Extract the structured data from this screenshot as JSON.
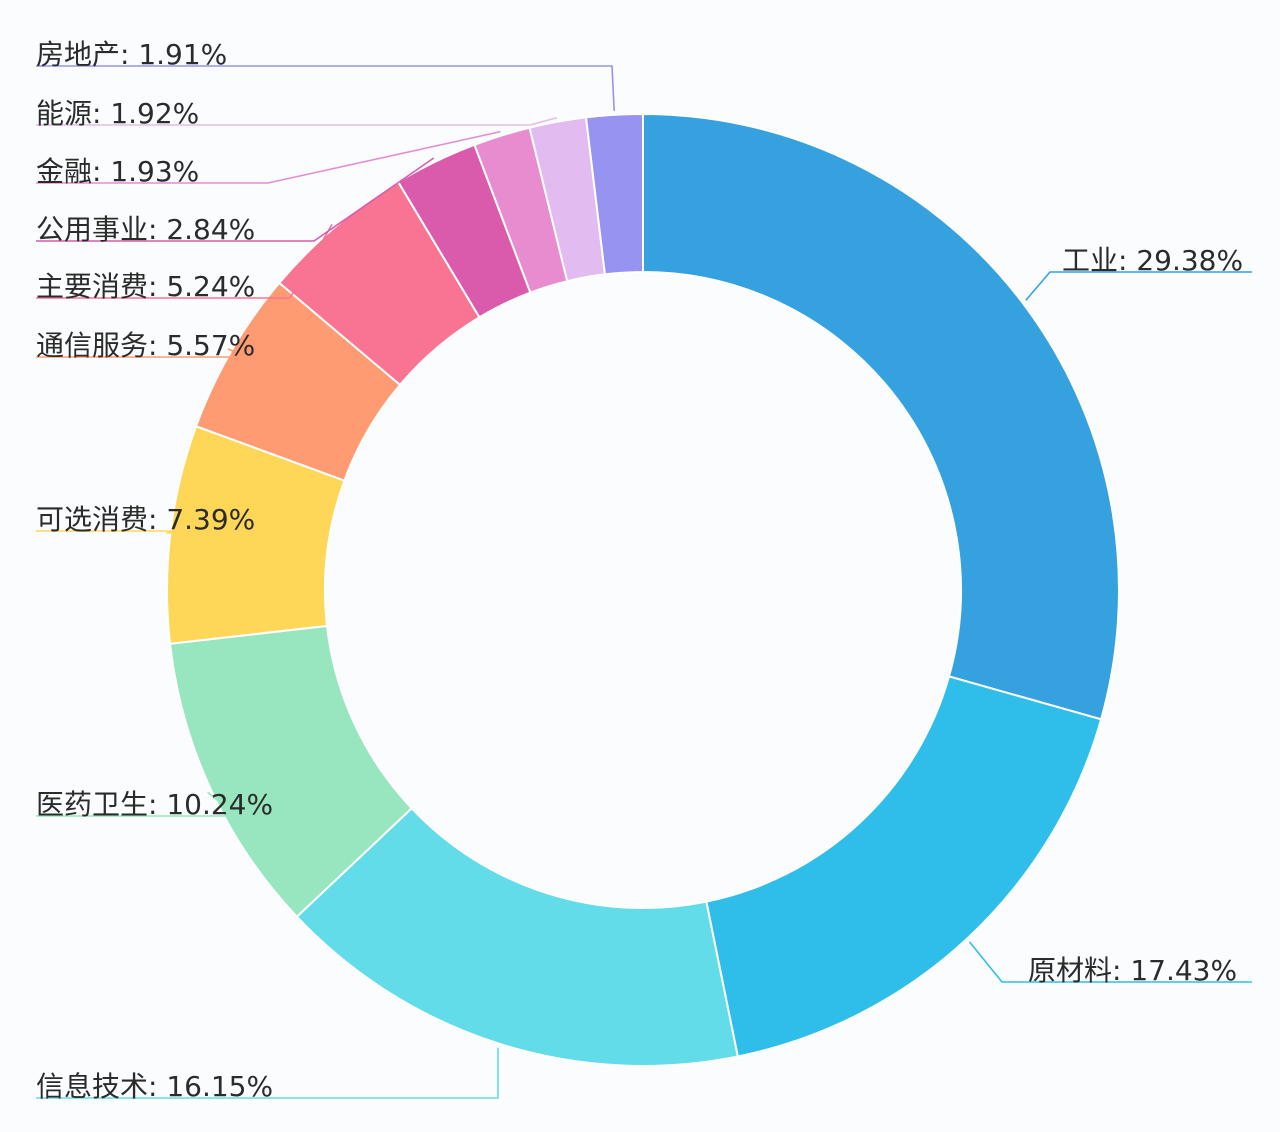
{
  "chart_data": {
    "type": "pie",
    "variant": "donut",
    "legend": "none",
    "label_separator": ": ",
    "slices": [
      {
        "name": "工业",
        "value": 29.38,
        "label": "29.38%",
        "color": "#35a2df"
      },
      {
        "name": "原材料",
        "value": 17.43,
        "label": "17.43%",
        "color": "#2ebee9"
      },
      {
        "name": "信息技术",
        "value": 16.15,
        "label": "16.15%",
        "color": "#62dce8"
      },
      {
        "name": "医药卫生",
        "value": 10.24,
        "label": "10.24%",
        "color": "#98e6bf"
      },
      {
        "name": "可选消费",
        "value": 7.39,
        "label": "7.39%",
        "color": "#ffd758"
      },
      {
        "name": "通信服务",
        "value": 5.57,
        "label": "5.57%",
        "color": "#ff9b73"
      },
      {
        "name": "主要消费",
        "value": 5.24,
        "label": "5.24%",
        "color": "#f97493"
      },
      {
        "name": "公用事业",
        "value": 2.84,
        "label": "2.84%",
        "color": "#da5bab"
      },
      {
        "name": "金融",
        "value": 1.93,
        "label": "1.93%",
        "color": "#e68ccf"
      },
      {
        "name": "能源",
        "value": 1.92,
        "label": "1.92%",
        "color": "#e2bbf1"
      },
      {
        "name": "房地产",
        "value": 1.91,
        "label": "1.91%",
        "color": "#9693f1"
      }
    ]
  }
}
